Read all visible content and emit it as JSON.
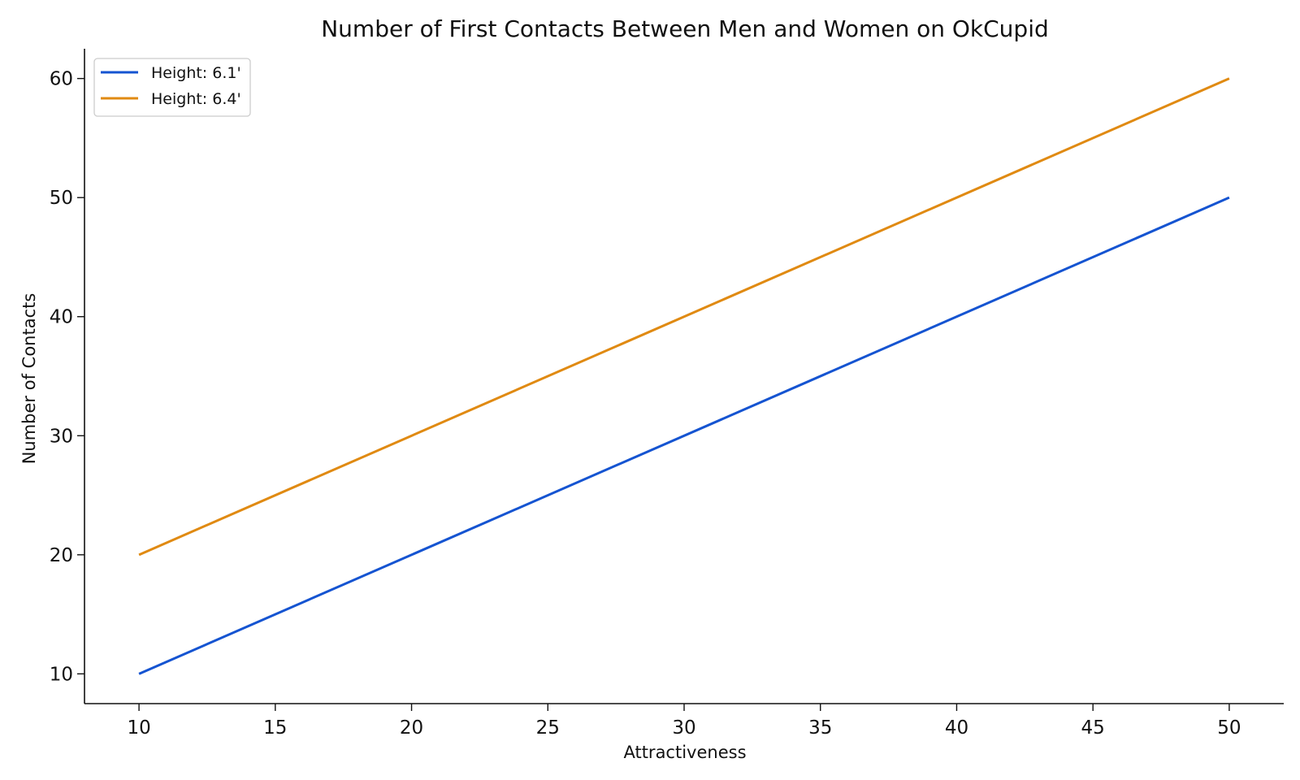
{
  "chart_data": {
    "type": "line",
    "title": "Number of First Contacts Between Men and Women on OkCupid",
    "xlabel": "Attractiveness",
    "ylabel": "Number of Contacts",
    "x": [
      10,
      50
    ],
    "xlim": [
      8,
      52
    ],
    "ylim": [
      7.5,
      62.5
    ],
    "xticks": [
      10,
      15,
      20,
      25,
      30,
      35,
      40,
      45,
      50
    ],
    "yticks": [
      10,
      20,
      30,
      40,
      50,
      60
    ],
    "grid": false,
    "legend_position": "top-left",
    "series": [
      {
        "name": "Height: 6.1'",
        "color": "#1554d1",
        "values": [
          10,
          50
        ]
      },
      {
        "name": "Height: 6.4'",
        "color": "#e08a12",
        "values": [
          20,
          60
        ]
      }
    ]
  }
}
